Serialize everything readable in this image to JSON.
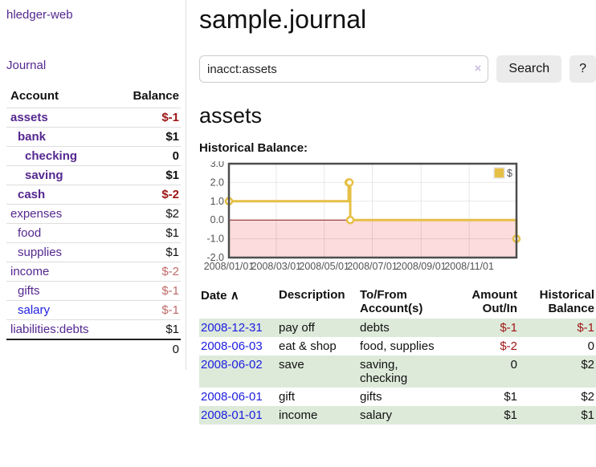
{
  "app": {
    "title": "hledger-web",
    "nav_journal": "Journal"
  },
  "sidebar": {
    "header": {
      "account": "Account",
      "balance": "Balance"
    },
    "accounts": [
      {
        "name": "assets",
        "indent": 1,
        "bold": true,
        "balance": "$-1",
        "balance_class": "neg-strong",
        "link_color": "purple"
      },
      {
        "name": "bank",
        "indent": 2,
        "bold": true,
        "balance": "$1",
        "balance_class": "",
        "link_color": "purple"
      },
      {
        "name": "checking",
        "indent": 3,
        "bold": true,
        "balance": "0",
        "balance_class": "",
        "link_color": "purple"
      },
      {
        "name": "saving",
        "indent": 3,
        "bold": true,
        "balance": "$1",
        "balance_class": "",
        "link_color": "purple"
      },
      {
        "name": "cash",
        "indent": 2,
        "bold": true,
        "balance": "$-2",
        "balance_class": "neg-strong",
        "link_color": "purple"
      },
      {
        "name": "expenses",
        "indent": 1,
        "bold": false,
        "balance": "$2",
        "balance_class": "",
        "link_color": "purple"
      },
      {
        "name": "food",
        "indent": 2,
        "bold": false,
        "balance": "$1",
        "balance_class": "",
        "link_color": "purple"
      },
      {
        "name": "supplies",
        "indent": 2,
        "bold": false,
        "balance": "$1",
        "balance_class": "",
        "link_color": "purple"
      },
      {
        "name": "income",
        "indent": 1,
        "bold": false,
        "balance": "$-2",
        "balance_class": "neg-soft",
        "link_color": "purple"
      },
      {
        "name": "gifts",
        "indent": 2,
        "bold": false,
        "balance": "$-1",
        "balance_class": "neg-soft",
        "link_color": "purple"
      },
      {
        "name": "salary",
        "indent": 2,
        "bold": false,
        "balance": "$-1",
        "balance_class": "neg-soft",
        "link_color": "blue"
      },
      {
        "name": "liabilities:debts",
        "indent": 1,
        "bold": false,
        "balance": "$1",
        "balance_class": "",
        "link_color": "purple"
      }
    ],
    "total": "0"
  },
  "main": {
    "title": "sample.journal",
    "search": {
      "value": "inacct:assets",
      "clear_icon": "×",
      "search_button": "Search",
      "help_button": "?"
    },
    "account_heading": "assets",
    "chart_label": "Historical Balance:"
  },
  "chart_data": {
    "type": "line",
    "title": "Historical Balance",
    "step": true,
    "series": [
      {
        "name": "$",
        "color": "#e6bf45",
        "points": [
          [
            "2008-01-01",
            1
          ],
          [
            "2008-06-01",
            2
          ],
          [
            "2008-06-02",
            2
          ],
          [
            "2008-06-03",
            0
          ],
          [
            "2008-12-31",
            -1
          ]
        ]
      }
    ],
    "xrange": [
      "2008-01-01",
      "2008-12-31"
    ],
    "ylim": [
      -2,
      3
    ],
    "yticks": [
      "3.0",
      "2.0",
      "1.0",
      "0.0",
      "-1.0",
      "-2.0"
    ],
    "xticks": [
      {
        "date": "2008-01-01",
        "label": "2008/01/01"
      },
      {
        "date": "2008-03-01",
        "label": "2008/03/01"
      },
      {
        "date": "2008-05-01",
        "label": "2008/05/01"
      },
      {
        "date": "2008-07-01",
        "label": "2008/07/01"
      },
      {
        "date": "2008-09-01",
        "label": "2008/09/01"
      },
      {
        "date": "2008-11-01",
        "label": "2008/11/01"
      }
    ],
    "grid": true,
    "legend_position": "top-right",
    "legend_label": "$",
    "colors": {
      "line": "#e6bf45",
      "negative_fill": "#fcdcdc",
      "zero_line": "#8b1a1a",
      "gridline": "#dcdcdc",
      "border": "#4d4d4d",
      "tick_text": "#545454"
    }
  },
  "register": {
    "headers": {
      "date": "Date",
      "sort_icon": "∧",
      "description": "Description",
      "accounts": "To/From\nAccount(s)",
      "amount": "Amount\nOut/In",
      "balance": "Historical\nBalance"
    },
    "rows": [
      {
        "date": "2008-12-31",
        "description": "pay off",
        "accounts": "debts",
        "amount": "$-1",
        "amount_neg": true,
        "balance": "$-1",
        "balance_neg": true
      },
      {
        "date": "2008-06-03",
        "description": "eat & shop",
        "accounts": "food, supplies",
        "amount": "$-2",
        "amount_neg": true,
        "balance": "0",
        "balance_neg": false
      },
      {
        "date": "2008-06-02",
        "description": "save",
        "accounts": "saving, checking",
        "amount": "0",
        "amount_neg": false,
        "balance": "$2",
        "balance_neg": false
      },
      {
        "date": "2008-06-01",
        "description": "gift",
        "accounts": "gifts",
        "amount": "$1",
        "amount_neg": false,
        "balance": "$2",
        "balance_neg": false
      },
      {
        "date": "2008-01-01",
        "description": "income",
        "accounts": "salary",
        "amount": "$1",
        "amount_neg": false,
        "balance": "$1",
        "balance_neg": false
      }
    ]
  },
  "colors": {
    "link_purple": "#54278f",
    "link_blue": "#1c1ce0",
    "negative_strong": "#9e1414",
    "negative_soft": "#c06a6a",
    "row_green": "#ddeada",
    "button_bg": "#ebebeb"
  }
}
